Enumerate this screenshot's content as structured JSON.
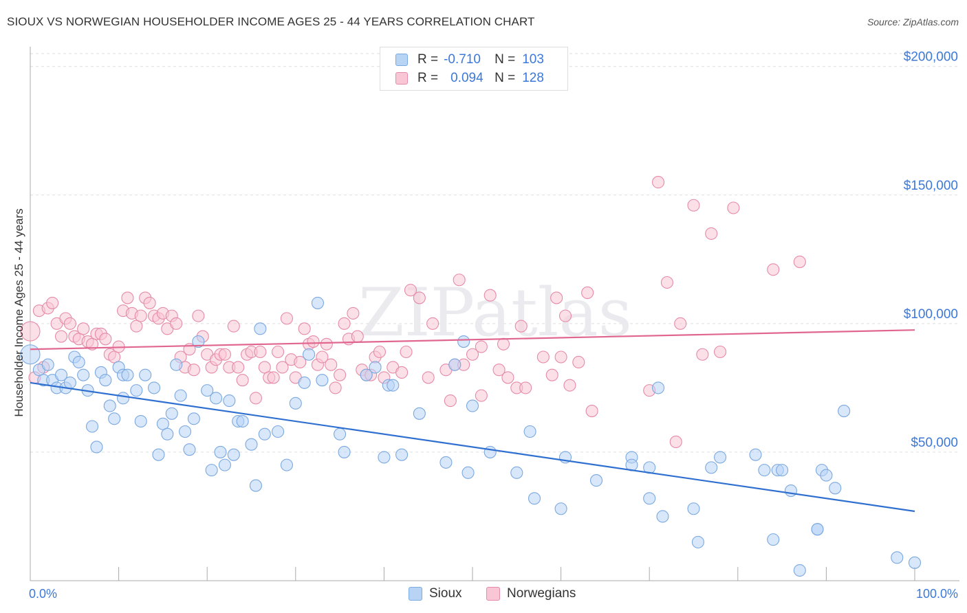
{
  "title": "SIOUX VS NORWEGIAN HOUSEHOLDER INCOME AGES 25 - 44 YEARS CORRELATION CHART",
  "source": "Source: ZipAtlas.com",
  "watermark": "ZIPatlas",
  "legend": {
    "rows": [
      {
        "r_label": "R =",
        "r_value": "-0.710",
        "n_label": "N =",
        "n_value": "103",
        "color": "#b8d4f5",
        "border": "#7aa8e0"
      },
      {
        "r_label": "R =",
        "r_value": "0.094",
        "n_label": "N =",
        "n_value": "128",
        "color": "#f9c6d5",
        "border": "#e58aa8"
      }
    ]
  },
  "bottom_legend": [
    {
      "label": "Sioux",
      "color": "#b8d4f5",
      "border": "#7aa8e0"
    },
    {
      "label": "Norwegians",
      "color": "#f9c6d5",
      "border": "#e58aa8"
    }
  ],
  "chart_data": {
    "type": "scatter",
    "title": "SIOUX VS NORWEGIAN HOUSEHOLDER INCOME AGES 25 - 44 YEARS CORRELATION CHART",
    "xlabel": "",
    "ylabel": "Householder Income Ages 25 - 44 years",
    "xlim": [
      0,
      100
    ],
    "ylim": [
      0,
      205000
    ],
    "x_tick_labels": [
      "0.0%",
      "100.0%"
    ],
    "y_ticks": [
      50000,
      100000,
      150000,
      200000
    ],
    "y_tick_labels": [
      "$50,000",
      "$100,000",
      "$150,000",
      "$200,000"
    ],
    "grid": true,
    "legend_position": "top-center",
    "series": [
      {
        "name": "Sioux",
        "color": "#7aa8e0",
        "fill": "#b8d4f5",
        "line_color": "#2e6fd0",
        "trend": [
          [
            0,
            77000
          ],
          [
            100,
            27000
          ]
        ],
        "points": [
          [
            0,
            88000
          ],
          [
            1,
            82000
          ],
          [
            1.5,
            78000
          ],
          [
            2,
            84000
          ],
          [
            2.5,
            78000
          ],
          [
            3,
            75000
          ],
          [
            3.5,
            80000
          ],
          [
            4,
            75000
          ],
          [
            4.5,
            77000
          ],
          [
            5,
            87000
          ],
          [
            5.5,
            85000
          ],
          [
            6,
            80000
          ],
          [
            6.5,
            74000
          ],
          [
            7,
            60000
          ],
          [
            7.5,
            52000
          ],
          [
            8,
            81000
          ],
          [
            8.5,
            78000
          ],
          [
            9,
            68000
          ],
          [
            9.5,
            63000
          ],
          [
            10,
            83000
          ],
          [
            10.5,
            80000
          ],
          [
            10.5,
            71000
          ],
          [
            11,
            80000
          ],
          [
            12,
            74000
          ],
          [
            12.5,
            62000
          ],
          [
            13,
            80000
          ],
          [
            14,
            75000
          ],
          [
            14.5,
            49000
          ],
          [
            15,
            61000
          ],
          [
            15.5,
            57000
          ],
          [
            16,
            65000
          ],
          [
            16.5,
            84000
          ],
          [
            17,
            72000
          ],
          [
            17.5,
            58000
          ],
          [
            18,
            51000
          ],
          [
            18.5,
            63000
          ],
          [
            19,
            93000
          ],
          [
            20,
            74000
          ],
          [
            20.5,
            43000
          ],
          [
            21,
            71000
          ],
          [
            21.5,
            50000
          ],
          [
            22,
            45000
          ],
          [
            22.5,
            70000
          ],
          [
            23,
            49000
          ],
          [
            23.5,
            62000
          ],
          [
            24,
            62000
          ],
          [
            25,
            53000
          ],
          [
            25.5,
            37000
          ],
          [
            26,
            98000
          ],
          [
            26.5,
            57000
          ],
          [
            28,
            58000
          ],
          [
            29,
            45000
          ],
          [
            30,
            69000
          ],
          [
            31,
            77000
          ],
          [
            31.5,
            88000
          ],
          [
            32.5,
            108000
          ],
          [
            33,
            78000
          ],
          [
            35,
            57000
          ],
          [
            35.5,
            50000
          ],
          [
            38,
            80000
          ],
          [
            39,
            83000
          ],
          [
            40,
            48000
          ],
          [
            40.5,
            76000
          ],
          [
            41,
            76000
          ],
          [
            42,
            49000
          ],
          [
            44,
            65000
          ],
          [
            47,
            46000
          ],
          [
            48,
            84000
          ],
          [
            49,
            93000
          ],
          [
            49.5,
            42000
          ],
          [
            50,
            68000
          ],
          [
            52,
            50000
          ],
          [
            55,
            42000
          ],
          [
            56.5,
            58000
          ],
          [
            57,
            32000
          ],
          [
            60,
            28000
          ],
          [
            60.5,
            48000
          ],
          [
            64,
            39000
          ],
          [
            68,
            48000
          ],
          [
            68,
            45000
          ],
          [
            70,
            44000
          ],
          [
            70,
            32000
          ],
          [
            71,
            75000
          ],
          [
            71.5,
            25000
          ],
          [
            75,
            28000
          ],
          [
            75.5,
            15000
          ],
          [
            78,
            48000
          ],
          [
            77,
            44000
          ],
          [
            82,
            49000
          ],
          [
            83,
            43000
          ],
          [
            84,
            16000
          ],
          [
            84.5,
            43000
          ],
          [
            85,
            43000
          ],
          [
            86,
            35000
          ],
          [
            87,
            4000
          ],
          [
            89,
            20000
          ],
          [
            89,
            20000
          ],
          [
            89.5,
            43000
          ],
          [
            90,
            41000
          ],
          [
            91,
            36000
          ],
          [
            92,
            66000
          ],
          [
            98,
            9000
          ],
          [
            100,
            7000
          ]
        ]
      },
      {
        "name": "Norwegians",
        "color": "#e58aa8",
        "fill": "#f9c6d5",
        "line_color": "#e06690",
        "trend": [
          [
            0,
            90000
          ],
          [
            100,
            97500
          ]
        ],
        "points": [
          [
            0,
            97000
          ],
          [
            0.5,
            79000
          ],
          [
            1,
            105000
          ],
          [
            1.5,
            83000
          ],
          [
            2,
            106000
          ],
          [
            2.5,
            108000
          ],
          [
            3,
            100000
          ],
          [
            3.5,
            95000
          ],
          [
            4,
            102000
          ],
          [
            4.5,
            100000
          ],
          [
            5,
            95000
          ],
          [
            5.5,
            94000
          ],
          [
            6,
            98000
          ],
          [
            6.5,
            93000
          ],
          [
            7,
            92000
          ],
          [
            7.5,
            96000
          ],
          [
            8,
            96000
          ],
          [
            8.5,
            94000
          ],
          [
            9,
            88000
          ],
          [
            9.5,
            87000
          ],
          [
            10,
            91000
          ],
          [
            10.5,
            105000
          ],
          [
            11,
            110000
          ],
          [
            11.5,
            104000
          ],
          [
            12,
            99000
          ],
          [
            12.5,
            103000
          ],
          [
            13,
            110000
          ],
          [
            13.5,
            108000
          ],
          [
            14,
            103000
          ],
          [
            14.5,
            102000
          ],
          [
            15,
            104000
          ],
          [
            15.5,
            98000
          ],
          [
            16,
            103000
          ],
          [
            16.5,
            100000
          ],
          [
            17,
            87000
          ],
          [
            17.5,
            83000
          ],
          [
            18,
            90000
          ],
          [
            18.5,
            82000
          ],
          [
            19,
            103000
          ],
          [
            19.5,
            95000
          ],
          [
            20,
            88000
          ],
          [
            20.5,
            83000
          ],
          [
            21,
            86000
          ],
          [
            21.5,
            88000
          ],
          [
            22,
            88000
          ],
          [
            22.5,
            83000
          ],
          [
            23,
            99000
          ],
          [
            23.5,
            83000
          ],
          [
            24,
            78000
          ],
          [
            24.5,
            88000
          ],
          [
            25,
            89000
          ],
          [
            25.5,
            71000
          ],
          [
            26,
            89000
          ],
          [
            26.5,
            83000
          ],
          [
            27,
            79000
          ],
          [
            27.5,
            79000
          ],
          [
            28,
            89000
          ],
          [
            28.5,
            83000
          ],
          [
            29,
            102000
          ],
          [
            29.5,
            86000
          ],
          [
            30,
            79000
          ],
          [
            30.5,
            85000
          ],
          [
            31,
            98000
          ],
          [
            31.5,
            92000
          ],
          [
            32,
            93000
          ],
          [
            32.5,
            84000
          ],
          [
            33,
            87000
          ],
          [
            33.5,
            92000
          ],
          [
            34,
            84000
          ],
          [
            34.5,
            75000
          ],
          [
            35,
            80000
          ],
          [
            35.5,
            100000
          ],
          [
            36,
            94000
          ],
          [
            36.5,
            104000
          ],
          [
            37,
            95000
          ],
          [
            37.5,
            82000
          ],
          [
            38,
            80000
          ],
          [
            38.5,
            80000
          ],
          [
            39,
            87000
          ],
          [
            39.5,
            89000
          ],
          [
            40,
            79000
          ],
          [
            41,
            83000
          ],
          [
            42,
            81000
          ],
          [
            42.5,
            89000
          ],
          [
            43,
            113000
          ],
          [
            44,
            110000
          ],
          [
            45,
            79000
          ],
          [
            45.5,
            100000
          ],
          [
            47,
            82000
          ],
          [
            47.5,
            70000
          ],
          [
            48,
            84000
          ],
          [
            48.5,
            117000
          ],
          [
            49,
            84000
          ],
          [
            50,
            88000
          ],
          [
            51,
            72000
          ],
          [
            51,
            91000
          ],
          [
            52,
            111000
          ],
          [
            53,
            82000
          ],
          [
            53.5,
            92000
          ],
          [
            54,
            79000
          ],
          [
            55,
            75000
          ],
          [
            55.5,
            99000
          ],
          [
            56,
            75000
          ],
          [
            58,
            87000
          ],
          [
            59,
            80000
          ],
          [
            59.5,
            110000
          ],
          [
            60,
            87000
          ],
          [
            60.5,
            103000
          ],
          [
            61,
            76000
          ],
          [
            62,
            85000
          ],
          [
            63,
            112000
          ],
          [
            63.5,
            66000
          ],
          [
            70,
            74000
          ],
          [
            71,
            155000
          ],
          [
            72,
            116000
          ],
          [
            73,
            54000
          ],
          [
            73.5,
            100000
          ],
          [
            75,
            146000
          ],
          [
            76,
            88000
          ],
          [
            77,
            135000
          ],
          [
            78,
            89000
          ],
          [
            79.5,
            145000
          ],
          [
            84,
            121000
          ],
          [
            87,
            124000
          ]
        ]
      }
    ]
  }
}
